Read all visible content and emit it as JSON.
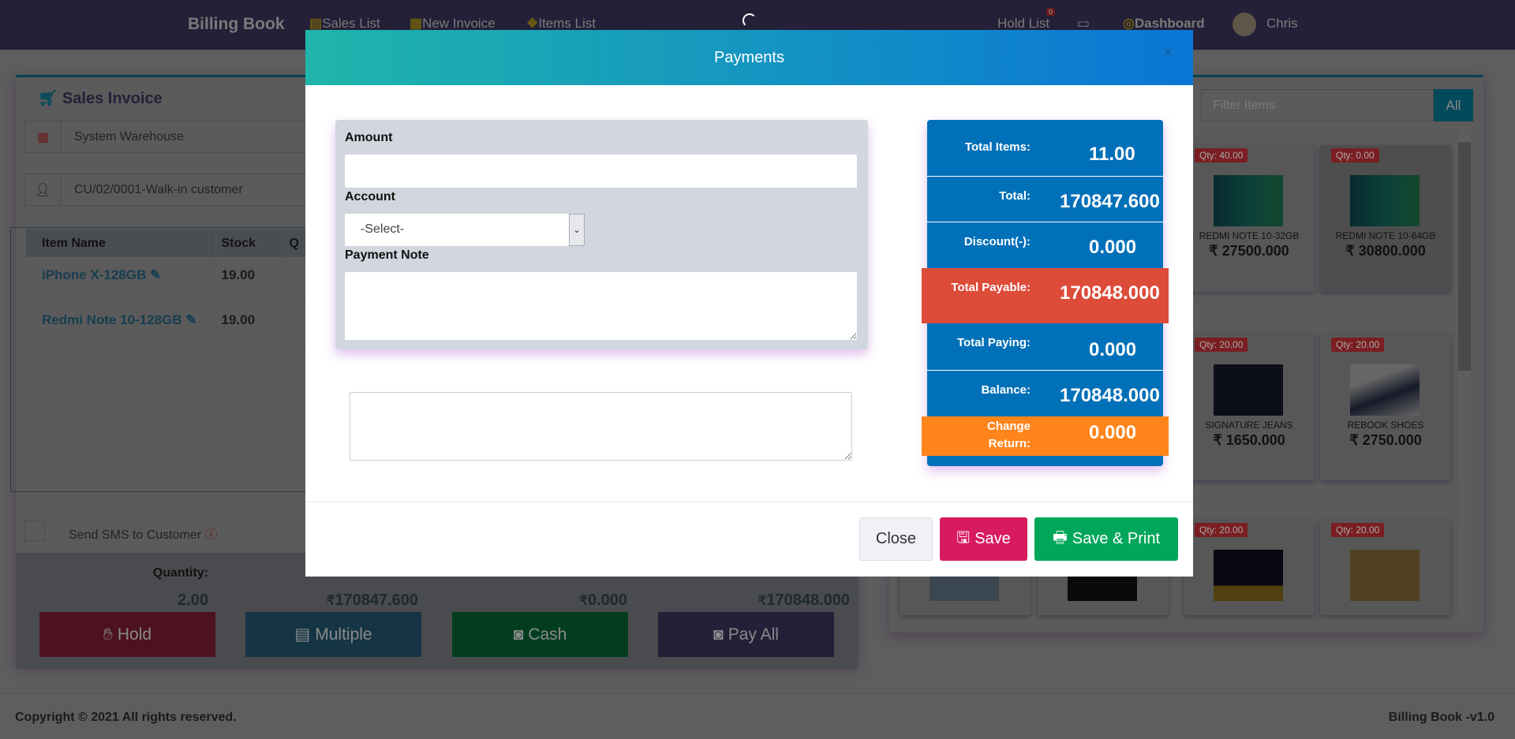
{
  "nav": {
    "brand": "Billing Book",
    "items": [
      "Sales List",
      "New Invoice",
      "Items List"
    ],
    "hold_list": "Hold List",
    "hold_count": "0",
    "dashboard": "Dashboard",
    "user": "Chris"
  },
  "invoice": {
    "title": "Sales Invoice",
    "warehouse": "System Warehouse",
    "customer": "CU/02/0001-Walk-in customer",
    "columns": [
      "Item Name",
      "Stock",
      "Q"
    ],
    "rows": [
      {
        "name": "iPhone X-128GB",
        "stock": "19.00"
      },
      {
        "name": "Redmi Note 10-128GB",
        "stock": "19.00"
      }
    ],
    "sms_label": "Send SMS to Customer",
    "quantity_label": "Quantity:",
    "quantity": "2.00",
    "currency": "₹",
    "total": "170847.600",
    "discount": "0.000",
    "payable": "170848.000",
    "buttons": {
      "hold": "Hold",
      "multiple": "Multiple",
      "cash": "Cash",
      "pay_all": "Pay All"
    }
  },
  "items": {
    "filter_placeholder": "Filter Items",
    "all_label": "All",
    "cards": [
      {
        "qty": "Qty: 40.00",
        "name": "REDMI NOTE 10-32GB",
        "price": "₹ 27500.000"
      },
      {
        "qty": "Qty: 0.00",
        "name": "REDMI NOTE 10-64GB",
        "price": "₹ 30800.000"
      },
      {
        "qty": "Qty: 20.00",
        "name": "SIGNATURE JEANS",
        "price": "₹ 1650.000"
      },
      {
        "qty": "Qty: 20.00",
        "name": "REBOOK SHOES",
        "price": "₹ 2750.000"
      },
      {
        "qty": "Qty: 20.00"
      },
      {
        "qty": "Qty: 20.00"
      }
    ]
  },
  "footer": {
    "copyright": "Copyright © 2021 All rights reserved.",
    "version": "Billing Book -v1.0"
  },
  "modal": {
    "title": "Payments",
    "close_x": "×",
    "amount_label": "Amount",
    "amount_value": "",
    "account_label": "Account",
    "account_selected": "-Select-",
    "note_label": "Payment Note",
    "note_value": "",
    "summary": [
      {
        "label": "Total Items:",
        "value": "11.00"
      },
      {
        "label": "Total:",
        "value": "170847.600"
      },
      {
        "label": "Discount(-):",
        "value": "0.000"
      },
      {
        "label": "Total Payable:",
        "value": "170848.000"
      },
      {
        "label": "Total Paying:",
        "value": "0.000"
      },
      {
        "label": "Balance:",
        "value": "170848.000"
      },
      {
        "label": "Change Return:",
        "value": "0.000"
      }
    ],
    "buttons": {
      "close": "Close",
      "save": "Save",
      "save_print": "Save & Print"
    }
  },
  "colors": {
    "summary_blue": "#0070b8",
    "payable_red": "#dd4b39",
    "change_orange": "#ff851b",
    "save": "#d81b60",
    "save_print": "#00a65a",
    "hold": "#c2163d",
    "multiple": "#1b6b8f",
    "cash": "#008d3f",
    "pay_all": "#4b4479"
  }
}
